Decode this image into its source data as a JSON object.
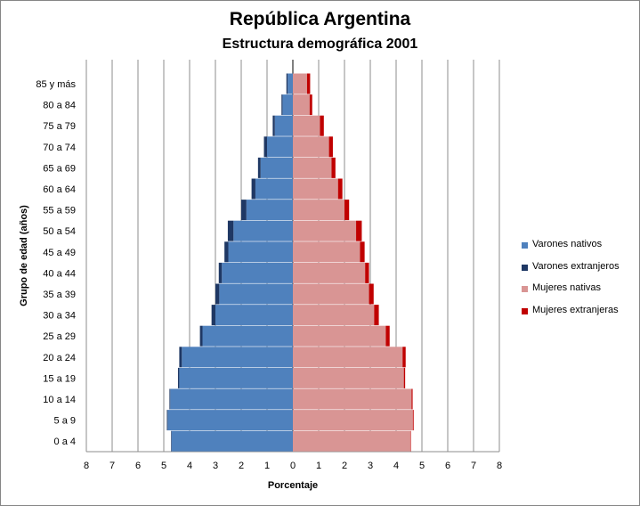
{
  "chart_data": {
    "type": "bar",
    "orientation": "horizontal-population-pyramid",
    "title": "República Argentina",
    "subtitle": "Estructura demográfica 2001",
    "xlabel": "Porcentaje",
    "ylabel": "Grupo de edad (años)",
    "xlim": [
      -8,
      8
    ],
    "x_tick_labels": [
      "8",
      "7",
      "6",
      "5",
      "4",
      "3",
      "2",
      "1",
      "0",
      "1",
      "2",
      "3",
      "4",
      "5",
      "6",
      "7",
      "8"
    ],
    "grid": true,
    "legend_position": "right",
    "categories": [
      "0 a 4",
      "5 a 9",
      "10 a 14",
      "15 a 19",
      "20 a 24",
      "25 a 29",
      "30 a 34",
      "35 a 39",
      "40 a 44",
      "45 a 49",
      "50 a 54",
      "55 a 59",
      "60 a 64",
      "65 a 69",
      "70 a 74",
      "75 a 79",
      "80 a 84",
      "85 y más"
    ],
    "series": [
      {
        "name": "Varones nativos",
        "side": "left",
        "color": "#4f81bd",
        "values": [
          4.7,
          4.85,
          4.75,
          4.4,
          4.3,
          3.5,
          3.0,
          2.85,
          2.75,
          2.5,
          2.3,
          1.8,
          1.45,
          1.25,
          1.0,
          0.7,
          0.4,
          0.2
        ]
      },
      {
        "name": "Varones extranjeros",
        "side": "left",
        "color": "#1f3864",
        "values": [
          0.02,
          0.03,
          0.03,
          0.05,
          0.1,
          0.1,
          0.15,
          0.15,
          0.12,
          0.15,
          0.22,
          0.2,
          0.15,
          0.1,
          0.12,
          0.08,
          0.04,
          0.05
        ]
      },
      {
        "name": "Mujeres nativas",
        "side": "right",
        "color": "#d99594",
        "values": [
          4.55,
          4.65,
          4.6,
          4.3,
          4.25,
          3.6,
          3.15,
          2.95,
          2.8,
          2.6,
          2.45,
          2.0,
          1.75,
          1.5,
          1.4,
          1.05,
          0.65,
          0.55
        ]
      },
      {
        "name": "Mujeres extranjeras",
        "side": "right",
        "color": "#c00000",
        "values": [
          0.02,
          0.03,
          0.04,
          0.05,
          0.12,
          0.15,
          0.18,
          0.18,
          0.15,
          0.18,
          0.22,
          0.18,
          0.17,
          0.15,
          0.15,
          0.15,
          0.1,
          0.12
        ]
      }
    ]
  }
}
